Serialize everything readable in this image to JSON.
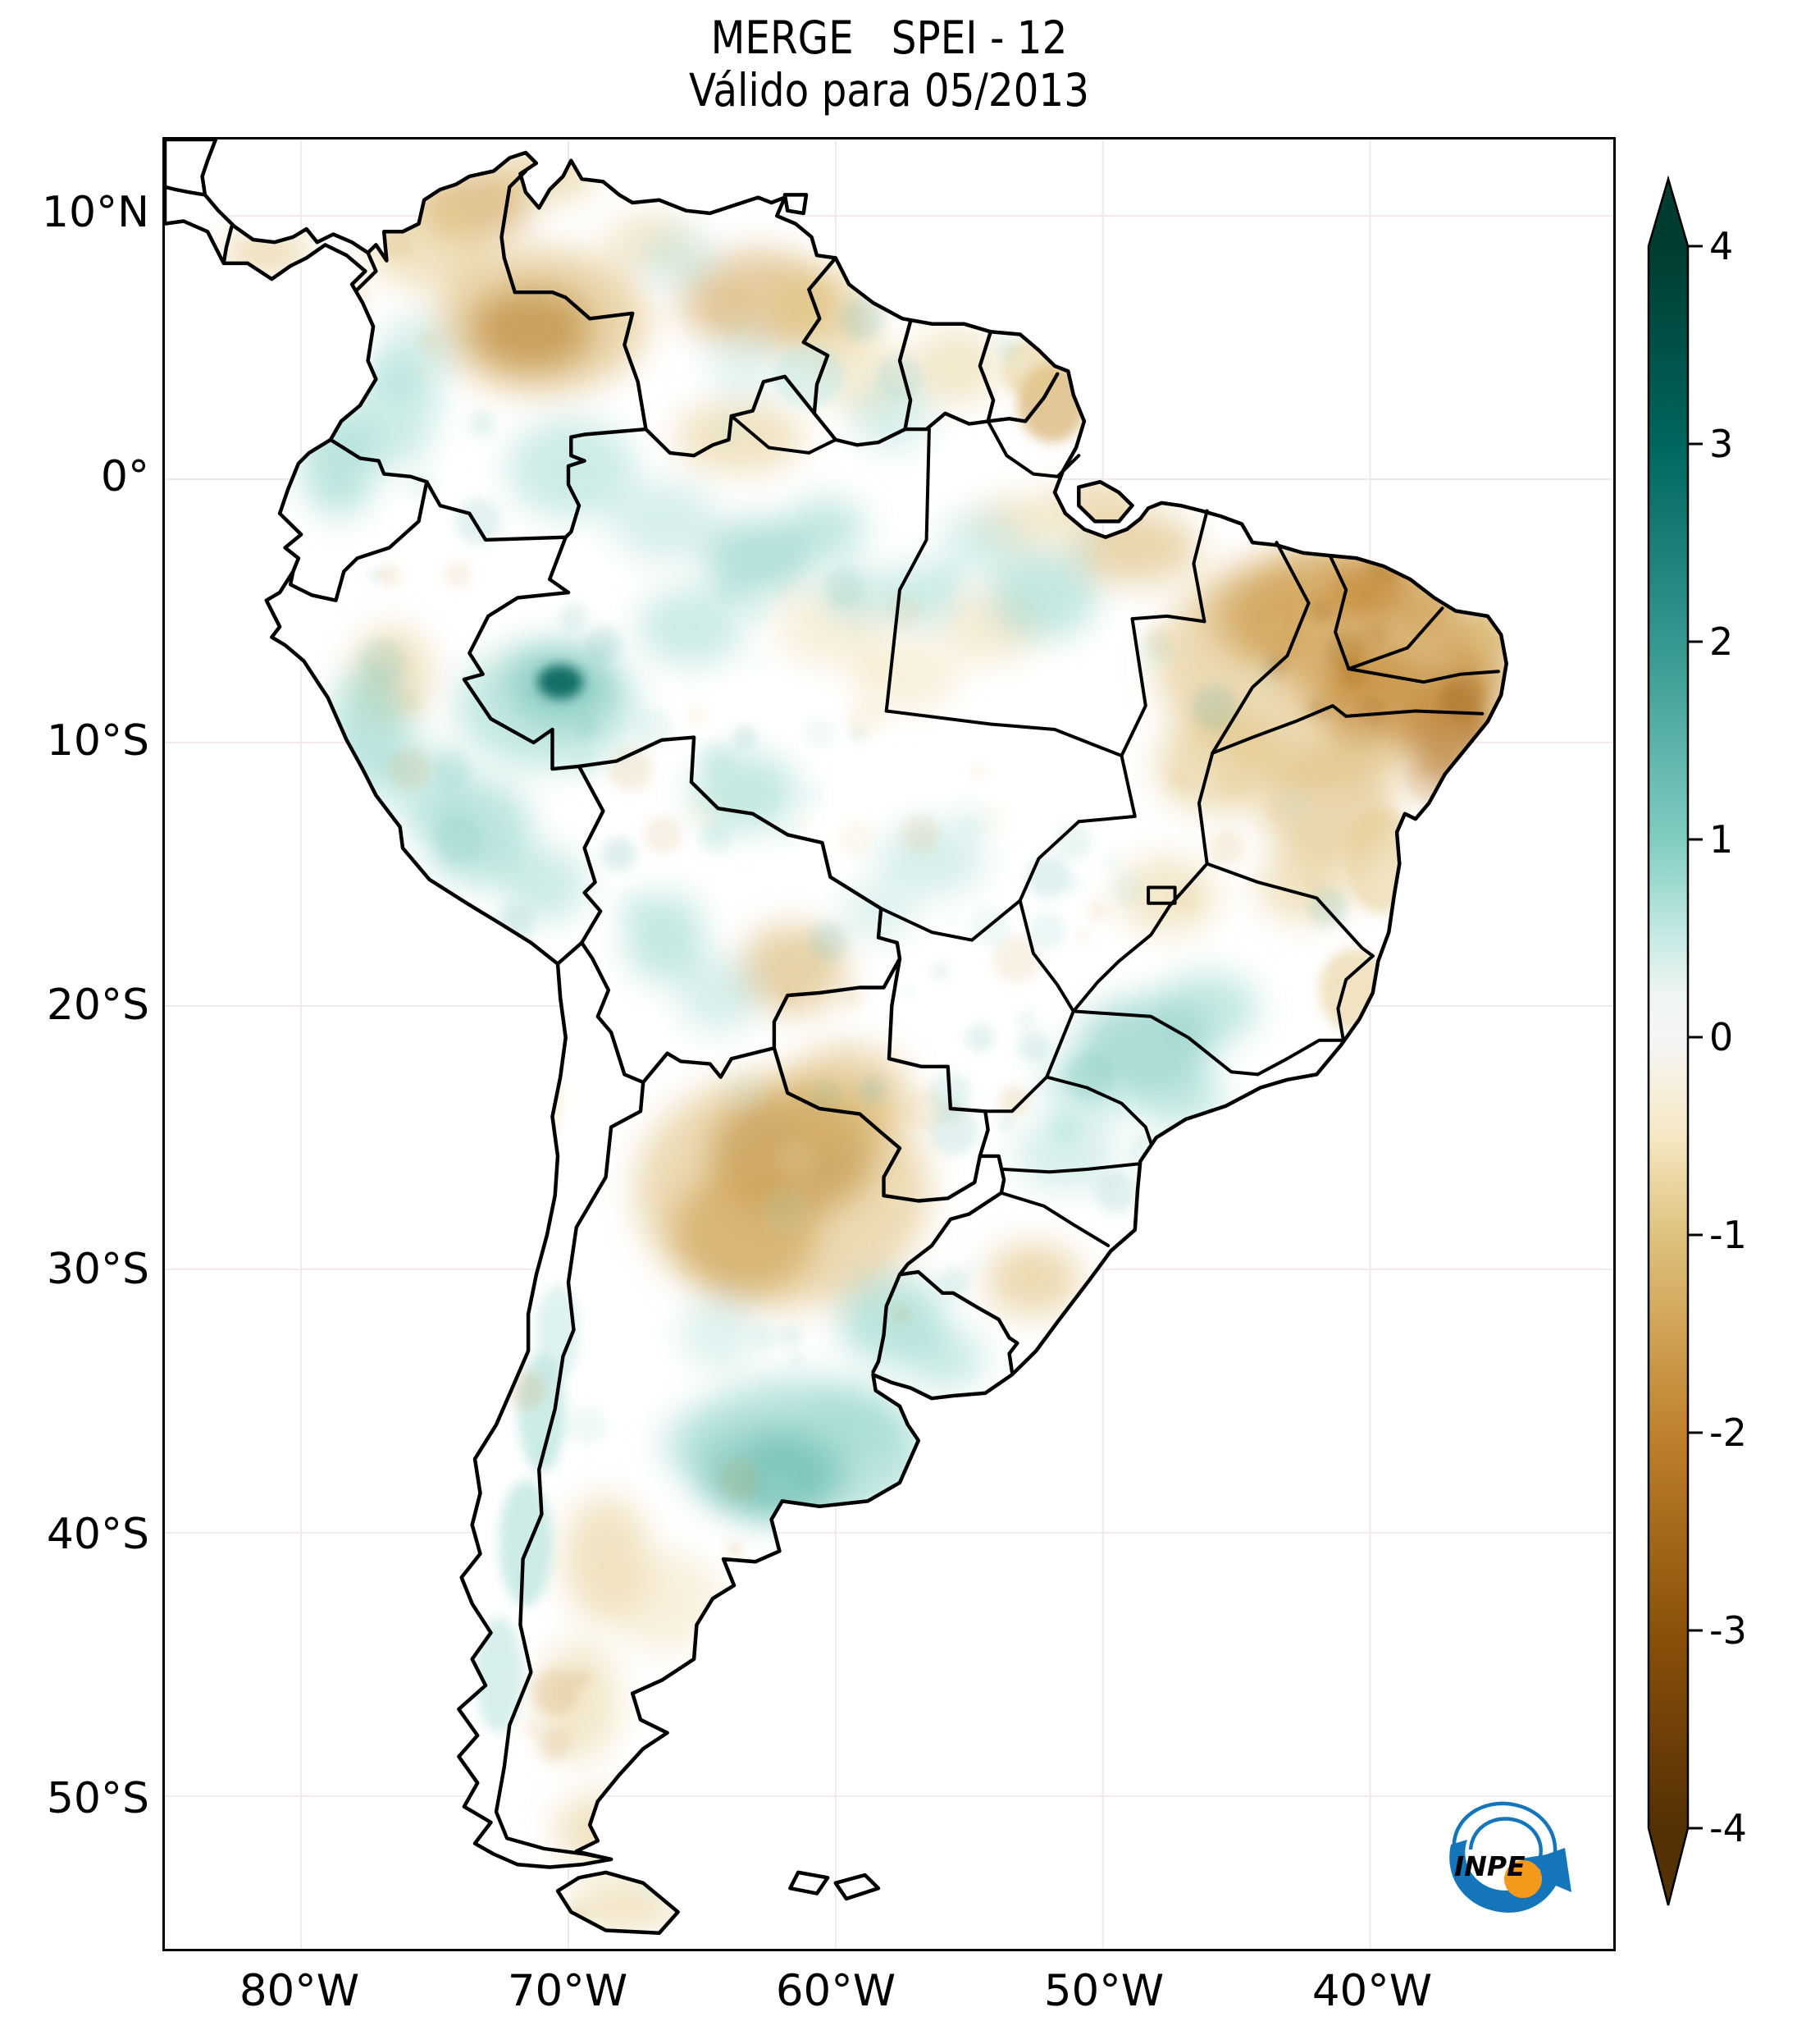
{
  "header": {
    "title_line1": "MERGE   SPEI - 12",
    "title_line2": "Válido para 05/2013"
  },
  "axes": {
    "lat_labels": [
      "10°N",
      "0°",
      "10°S",
      "20°S",
      "30°S",
      "40°S",
      "50°S"
    ],
    "lon_labels": [
      "80°W",
      "70°W",
      "60°W",
      "50°W",
      "40°W"
    ]
  },
  "colorbar": {
    "tick_labels": [
      "4",
      "3",
      "2",
      "1",
      "0",
      "-1",
      "-2",
      "-3",
      "-4"
    ],
    "min": -4,
    "max": 4,
    "colormap_name": "BrBG"
  },
  "logo": {
    "text": "INPE",
    "blue": "#1475bb",
    "orange": "#f5991d"
  },
  "chart_data": {
    "type": "heatmap",
    "title": "MERGE   SPEI - 12",
    "subtitle": "Válido para 05/2013",
    "region": "South America",
    "variable": "SPEI-12 drought index field over South America",
    "valid_for": "05/2013",
    "product": "MERGE",
    "grid": "faint 10-degree graticule",
    "x_axis": {
      "tick_labels": [
        "80°W",
        "70°W",
        "60°W",
        "50°W",
        "40°W"
      ]
    },
    "y_axis": {
      "tick_labels": [
        "10°N",
        "0°",
        "10°S",
        "20°S",
        "30°S",
        "40°S",
        "50°S"
      ]
    },
    "colorbar": {
      "ticks": [
        4,
        3,
        2,
        1,
        0,
        -1,
        -2,
        -3,
        -4
      ],
      "range": [
        -4,
        4
      ],
      "extend": "both",
      "palette_anchors": [
        [
          -4,
          "#543005"
        ],
        [
          -3,
          "#8c510a"
        ],
        [
          -2,
          "#bf812d"
        ],
        [
          -1,
          "#dfc27d"
        ],
        [
          -0.5,
          "#f6e8c3"
        ],
        [
          0,
          "#f5f5f5"
        ],
        [
          0.5,
          "#c7eae5"
        ],
        [
          1,
          "#80cdc1"
        ],
        [
          2,
          "#35978f"
        ],
        [
          3,
          "#01665e"
        ],
        [
          4,
          "#003c30"
        ]
      ]
    },
    "field_blobs": [
      [
        -73.6,
        10.4,
        2.2,
        1.4,
        -1.6
      ],
      [
        -75.2,
        9.0,
        2.4,
        1.8,
        -0.9
      ],
      [
        -71.0,
        11.6,
        2.0,
        1.1,
        -1.0
      ],
      [
        -71.4,
        5.7,
        2.3,
        1.6,
        -2.6
      ],
      [
        -71.0,
        6.0,
        4.0,
        2.8,
        -1.2
      ],
      [
        -66.9,
        9.0,
        1.7,
        1.1,
        -0.8
      ],
      [
        -62.9,
        6.8,
        3.0,
        1.9,
        -1.4
      ],
      [
        -60.6,
        6.3,
        2.0,
        1.8,
        -1.0
      ],
      [
        -63.6,
        1.6,
        2.4,
        1.4,
        -0.9
      ],
      [
        -59.0,
        4.0,
        1.6,
        1.6,
        -0.7
      ],
      [
        -51.9,
        2.9,
        1.3,
        1.5,
        -1.5
      ],
      [
        -52.6,
        4.2,
        1.2,
        1.2,
        -0.9
      ],
      [
        -55.5,
        4.3,
        1.7,
        1.5,
        -0.8
      ],
      [
        -40.6,
        -5.3,
        4.4,
        3.0,
        -1.8
      ],
      [
        -41.5,
        -7.0,
        6.5,
        4.5,
        -1.1
      ],
      [
        -37.0,
        -9.6,
        1.6,
        2.2,
        -2.2
      ],
      [
        -43.6,
        -5.2,
        2.4,
        1.8,
        -1.5
      ],
      [
        -36.0,
        -7.3,
        1.4,
        1.8,
        -1.7
      ],
      [
        -39.9,
        -8.3,
        2.2,
        1.8,
        -1.9
      ],
      [
        -40.0,
        -4.3,
        1.6,
        1.0,
        -2.0
      ],
      [
        -35.5,
        -5.8,
        1.0,
        0.8,
        -1.2
      ],
      [
        -41.5,
        -12.5,
        2.5,
        2.2,
        -1.2
      ],
      [
        -39.6,
        -14.5,
        1.3,
        2.0,
        -0.9
      ],
      [
        -45.6,
        -10.8,
        2.4,
        1.9,
        -1.0
      ],
      [
        -47.6,
        -15.8,
        1.9,
        1.5,
        -0.8
      ],
      [
        -42.4,
        -15.4,
        1.8,
        1.4,
        -0.9
      ],
      [
        -40.6,
        -19.4,
        1.3,
        1.6,
        -0.9
      ],
      [
        -48.8,
        -2.6,
        2.4,
        1.4,
        -1.2
      ],
      [
        -50.2,
        -0.7,
        1.6,
        0.9,
        -1.0
      ],
      [
        -53.0,
        -1.6,
        1.8,
        1.0,
        -0.8
      ],
      [
        -60.2,
        -5.6,
        2.1,
        1.5,
        -0.6
      ],
      [
        -57.4,
        -7.4,
        2.0,
        1.4,
        -0.6
      ],
      [
        -54.2,
        -5.6,
        1.8,
        1.4,
        -0.7
      ],
      [
        -61.6,
        -25.6,
        3.1,
        2.4,
        -2.4
      ],
      [
        -63.4,
        -28.6,
        2.7,
        2.4,
        -1.9
      ],
      [
        -62.0,
        -27.0,
        5.5,
        4.5,
        -1.1
      ],
      [
        -59.6,
        -23.4,
        2.4,
        1.9,
        -1.2
      ],
      [
        -61.6,
        -18.6,
        2.0,
        1.7,
        -1.3
      ],
      [
        -52.6,
        -30.4,
        1.8,
        1.4,
        -1.1
      ],
      [
        -76.6,
        -7.4,
        1.5,
        1.8,
        -0.9
      ],
      [
        -81.3,
        8.6,
        1.7,
        0.8,
        -1.1
      ],
      [
        -68.6,
        -41.0,
        1.6,
        2.4,
        -0.9
      ],
      [
        -69.6,
        -46.4,
        1.5,
        2.3,
        -0.8
      ],
      [
        -68.6,
        -51.3,
        1.9,
        1.4,
        -0.9
      ],
      [
        -67.9,
        -54.2,
        2.2,
        0.9,
        -0.9
      ],
      [
        -66.4,
        -42.6,
        2.1,
        1.9,
        -0.6
      ],
      [
        -71.2,
        -23.5,
        1.0,
        2.0,
        -0.5
      ],
      [
        -70.3,
        -7.7,
        0.85,
        0.65,
        3.2
      ],
      [
        -70.3,
        -7.8,
        2.0,
        1.5,
        1.6
      ],
      [
        -70.8,
        -8.6,
        3.4,
        2.4,
        0.9
      ],
      [
        -77.4,
        -9.4,
        1.5,
        2.4,
        1.0
      ],
      [
        -73.4,
        -13.4,
        2.0,
        2.0,
        1.0
      ],
      [
        -75.4,
        -11.6,
        1.6,
        1.6,
        0.8
      ],
      [
        -70.9,
        -15.4,
        1.6,
        1.4,
        0.8
      ],
      [
        -78.6,
        0.6,
        1.4,
        2.0,
        1.0
      ],
      [
        -76.6,
        2.4,
        1.6,
        2.0,
        0.8
      ],
      [
        -75.8,
        4.6,
        1.4,
        1.6,
        0.7
      ],
      [
        -69.9,
        0.4,
        2.4,
        1.9,
        0.8
      ],
      [
        -66.4,
        -1.6,
        2.0,
        1.5,
        0.7
      ],
      [
        -62.9,
        -3.0,
        2.0,
        1.5,
        1.1
      ],
      [
        -60.4,
        -1.9,
        1.5,
        1.2,
        0.9
      ],
      [
        -65.4,
        -5.6,
        2.0,
        1.5,
        0.8
      ],
      [
        -59.2,
        -4.4,
        1.4,
        1.1,
        0.7
      ],
      [
        -56.8,
        -4.4,
        1.5,
        1.2,
        0.8
      ],
      [
        -52.2,
        -4.4,
        2.0,
        1.7,
        0.9
      ],
      [
        -54.6,
        -2.4,
        1.5,
        1.2,
        0.7
      ],
      [
        -63.4,
        -11.9,
        2.0,
        1.5,
        0.9
      ],
      [
        -66.4,
        -17.4,
        1.5,
        1.7,
        0.9
      ],
      [
        -64.4,
        -19.6,
        1.5,
        1.4,
        0.7
      ],
      [
        -56.4,
        -14.4,
        2.0,
        1.4,
        0.7
      ],
      [
        -58.4,
        -16.4,
        1.4,
        1.1,
        0.6
      ],
      [
        -48.4,
        -21.4,
        2.5,
        1.7,
        1.2
      ],
      [
        -46.1,
        -20.1,
        1.9,
        1.4,
        0.9
      ],
      [
        -50.4,
        -22.9,
        1.9,
        1.4,
        0.8
      ],
      [
        -47.2,
        -23.4,
        1.7,
        1.2,
        0.9
      ],
      [
        -51.4,
        -25.6,
        1.9,
        1.4,
        0.7
      ],
      [
        -57.9,
        -31.9,
        2.0,
        1.7,
        1.0
      ],
      [
        -55.9,
        -33.4,
        1.5,
        1.2,
        0.8
      ],
      [
        -62.4,
        -37.7,
        2.7,
        1.7,
        1.9
      ],
      [
        -61.3,
        -36.9,
        4.6,
        2.8,
        1.0
      ],
      [
        -59.4,
        -35.9,
        2.0,
        1.4,
        0.8
      ],
      [
        -64.8,
        -36.6,
        1.8,
        1.4,
        0.7
      ],
      [
        -64.4,
        -32.4,
        1.4,
        1.4,
        0.6
      ],
      [
        -71.0,
        -35.4,
        0.9,
        2.2,
        0.8
      ],
      [
        -71.6,
        -40.4,
        1.0,
        2.4,
        0.8
      ],
      [
        -72.6,
        -45.4,
        0.9,
        2.2,
        0.7
      ],
      [
        -70.4,
        -32.4,
        0.8,
        1.8,
        0.6
      ],
      [
        -65.9,
        8.4,
        1.4,
        1.1,
        0.6
      ],
      [
        -63.4,
        4.4,
        1.4,
        1.4,
        0.5
      ],
      [
        -57.9,
        2.4,
        1.5,
        1.3,
        0.7
      ],
      [
        -61.0,
        3.9,
        1.3,
        1.2,
        0.6
      ]
    ]
  }
}
